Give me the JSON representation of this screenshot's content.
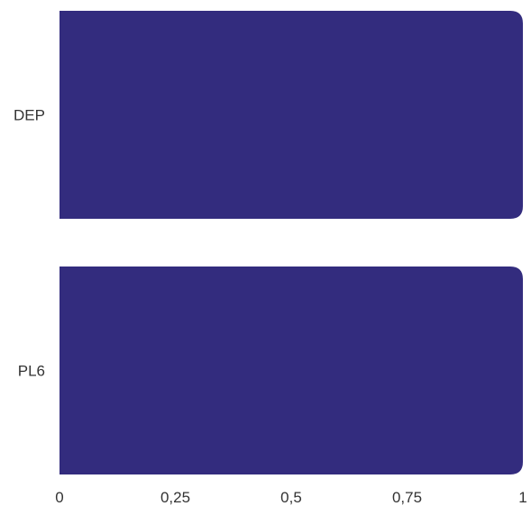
{
  "chart_data": {
    "type": "bar",
    "orientation": "horizontal",
    "categories": [
      "DEP",
      "PL6"
    ],
    "values": [
      1,
      1
    ],
    "xlim": [
      0,
      1
    ],
    "xticks": [
      0,
      0.25,
      0.5,
      0.75,
      1
    ],
    "xtick_labels": [
      "0",
      "0,25",
      "0,5",
      "0,75",
      "1"
    ],
    "title": "",
    "xlabel": "",
    "ylabel": "",
    "grid": false,
    "legend": "none",
    "bar_color": "#332C7E"
  }
}
